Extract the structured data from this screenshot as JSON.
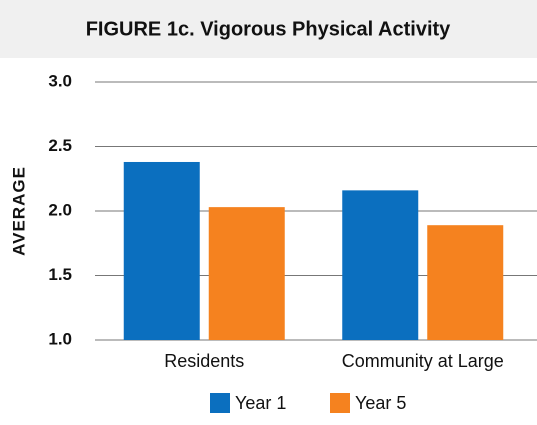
{
  "chart_data": {
    "type": "bar",
    "title": "FIGURE 1c. Vigorous Physical Activity",
    "y_label": "AVERAGE",
    "categories": [
      "Residents",
      "Community at Large"
    ],
    "series": [
      {
        "name": "Year 1",
        "color": "#0b6fbf",
        "values": [
          2.38,
          2.16
        ]
      },
      {
        "name": "Year 5",
        "color": "#f5821f",
        "values": [
          2.03,
          1.89
        ]
      }
    ],
    "ylim": [
      1,
      3
    ],
    "yticks": [
      {
        "value": 1,
        "label": "1.0"
      },
      1.5,
      {
        "value": 2,
        "label": "2.0"
      },
      2.5,
      {
        "value": 3,
        "label": "3.0"
      }
    ],
    "grid": true
  }
}
